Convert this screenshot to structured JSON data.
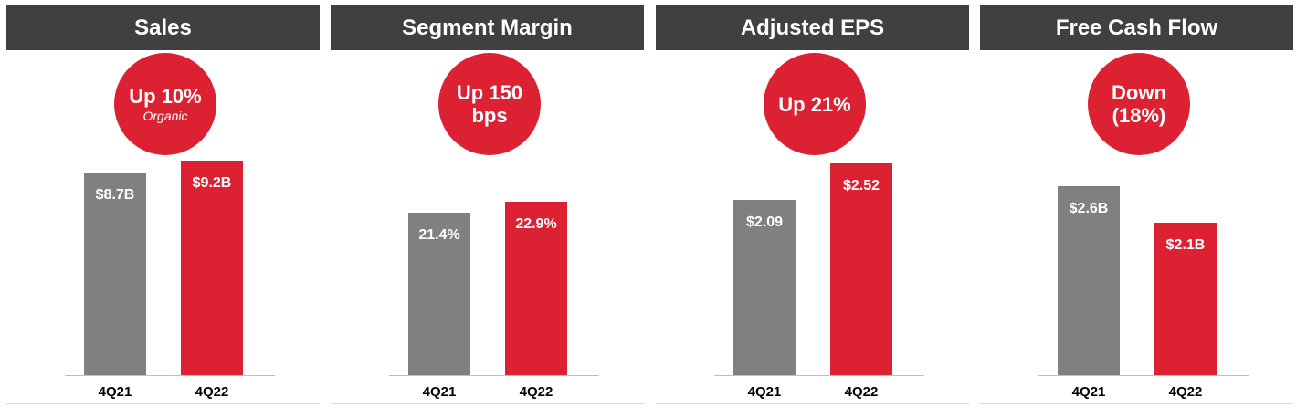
{
  "colors": {
    "header_bg": "#404040",
    "prior_bar": "#808080",
    "current_bar": "#dc2232",
    "badge": "#dc2232"
  },
  "chart_data": [
    {
      "type": "bar",
      "title": "Sales",
      "badge": [
        "Up 10%"
      ],
      "badge_sub": "Organic",
      "categories": [
        "4Q21",
        "4Q22"
      ],
      "values": [
        8.7,
        9.2
      ],
      "data_labels": [
        "$8.7B",
        "$9.2B"
      ],
      "unit": "$B",
      "ylim": [
        0,
        10.0
      ]
    },
    {
      "type": "bar",
      "title": "Segment Margin",
      "badge": [
        "Up 150",
        "bps"
      ],
      "badge_sub": "",
      "categories": [
        "4Q21",
        "4Q22"
      ],
      "values": [
        21.4,
        22.9
      ],
      "data_labels": [
        "21.4%",
        "22.9%"
      ],
      "unit": "%",
      "ylim": [
        0,
        30.7
      ]
    },
    {
      "type": "bar",
      "title": "Adjusted EPS",
      "badge": [
        "Up 21%"
      ],
      "badge_sub": "",
      "categories": [
        "4Q21",
        "4Q22"
      ],
      "values": [
        2.09,
        2.52
      ],
      "data_labels": [
        "$2.09",
        "$2.52"
      ],
      "unit": "$",
      "ylim": [
        0,
        2.77
      ]
    },
    {
      "type": "bar",
      "title": "Free Cash Flow",
      "badge": [
        "Down",
        "(18%)"
      ],
      "badge_sub": "",
      "categories": [
        "4Q21",
        "4Q22"
      ],
      "values": [
        2.6,
        2.1
      ],
      "data_labels": [
        "$2.6B",
        "$2.1B"
      ],
      "unit": "$B",
      "ylim": [
        0,
        3.2
      ]
    }
  ]
}
